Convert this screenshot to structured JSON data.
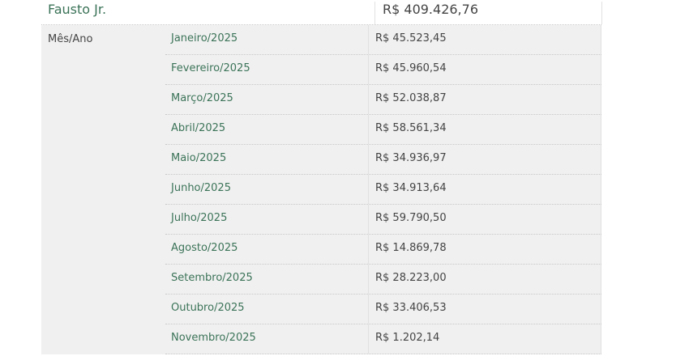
{
  "person": {
    "name": "Fausto Jr.",
    "total": "R$ 409.426,76"
  },
  "label": "Mês/Ano",
  "rows": [
    {
      "month": "Janeiro/2025",
      "value": "R$ 45.523,45"
    },
    {
      "month": "Fevereiro/2025",
      "value": "R$ 45.960,54"
    },
    {
      "month": "Março/2025",
      "value": "R$ 52.038,87"
    },
    {
      "month": "Abril/2025",
      "value": "R$ 58.561,34"
    },
    {
      "month": "Maio/2025",
      "value": "R$ 34.936,97"
    },
    {
      "month": "Junho/2025",
      "value": "R$ 34.913,64"
    },
    {
      "month": "Julho/2025",
      "value": "R$ 59.790,50"
    },
    {
      "month": "Agosto/2025",
      "value": "R$ 14.869,78"
    },
    {
      "month": "Setembro/2025",
      "value": "R$ 28.223,00"
    },
    {
      "month": "Outubro/2025",
      "value": "R$ 33.406,53"
    },
    {
      "month": "Novembro/2025",
      "value": "R$ 1.202,14"
    }
  ]
}
